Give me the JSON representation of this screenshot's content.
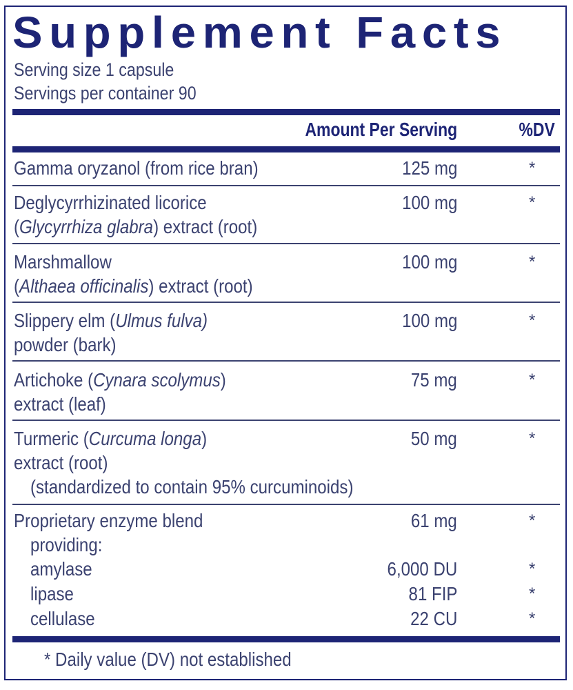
{
  "title": "Supplement Facts",
  "serving_size": "Serving size  1 capsule",
  "servings_per_container": "Servings per container  90",
  "header": {
    "amount": "Amount Per Serving",
    "dv": "%DV"
  },
  "colors": {
    "navy": "#1d2475",
    "text": "#3b4270"
  },
  "rows": [
    {
      "lines": [
        [
          {
            "t": "Gamma oryzanol (from rice bran)"
          }
        ]
      ],
      "amount": "125 mg",
      "dv": "*"
    },
    {
      "lines": [
        [
          {
            "t": "Deglycyrrhizinated licorice"
          }
        ],
        [
          {
            "t": "("
          },
          {
            "t": "Glycyrrhiza glabra",
            "i": true
          },
          {
            "t": ") extract (root)"
          }
        ]
      ],
      "amount": "100 mg",
      "dv": "*"
    },
    {
      "lines": [
        [
          {
            "t": "Marshmallow"
          }
        ],
        [
          {
            "t": "("
          },
          {
            "t": "Althaea officinalis",
            "i": true
          },
          {
            "t": ") extract (root)"
          }
        ]
      ],
      "amount": "100 mg",
      "dv": "*"
    },
    {
      "lines": [
        [
          {
            "t": "Slippery elm ("
          },
          {
            "t": "Ulmus fulva)",
            "i": true
          }
        ],
        [
          {
            "t": "powder (bark)"
          }
        ]
      ],
      "amount": "100 mg",
      "dv": "*"
    },
    {
      "lines": [
        [
          {
            "t": "Artichoke ("
          },
          {
            "t": "Cynara scolymus",
            "i": true
          },
          {
            "t": ")"
          }
        ],
        [
          {
            "t": "extract (leaf)"
          }
        ]
      ],
      "amount": "75 mg",
      "dv": "*"
    },
    {
      "lines": [
        [
          {
            "t": "Turmeric ("
          },
          {
            "t": "Curcuma longa",
            "i": true
          },
          {
            "t": ")"
          }
        ],
        [
          {
            "t": "extract (root)"
          }
        ],
        [
          {
            "t": "(standardized to contain 95% curcuminoids)",
            "indent": true
          }
        ]
      ],
      "amount": "50 mg",
      "dv": "*"
    },
    {
      "lines": [
        [
          {
            "t": "Proprietary enzyme blend"
          }
        ],
        [
          {
            "t": "providing:",
            "indent": true
          }
        ]
      ],
      "amount": "61 mg",
      "dv": "*",
      "subs": [
        {
          "name": "amylase",
          "amount": "6,000 DU",
          "dv": "*"
        },
        {
          "name": "lipase",
          "amount": "81 FIP",
          "dv": "*"
        },
        {
          "name": "cellulase",
          "amount": "22 CU",
          "dv": "*"
        }
      ]
    }
  ],
  "footnote": "* Daily value (DV) not established"
}
